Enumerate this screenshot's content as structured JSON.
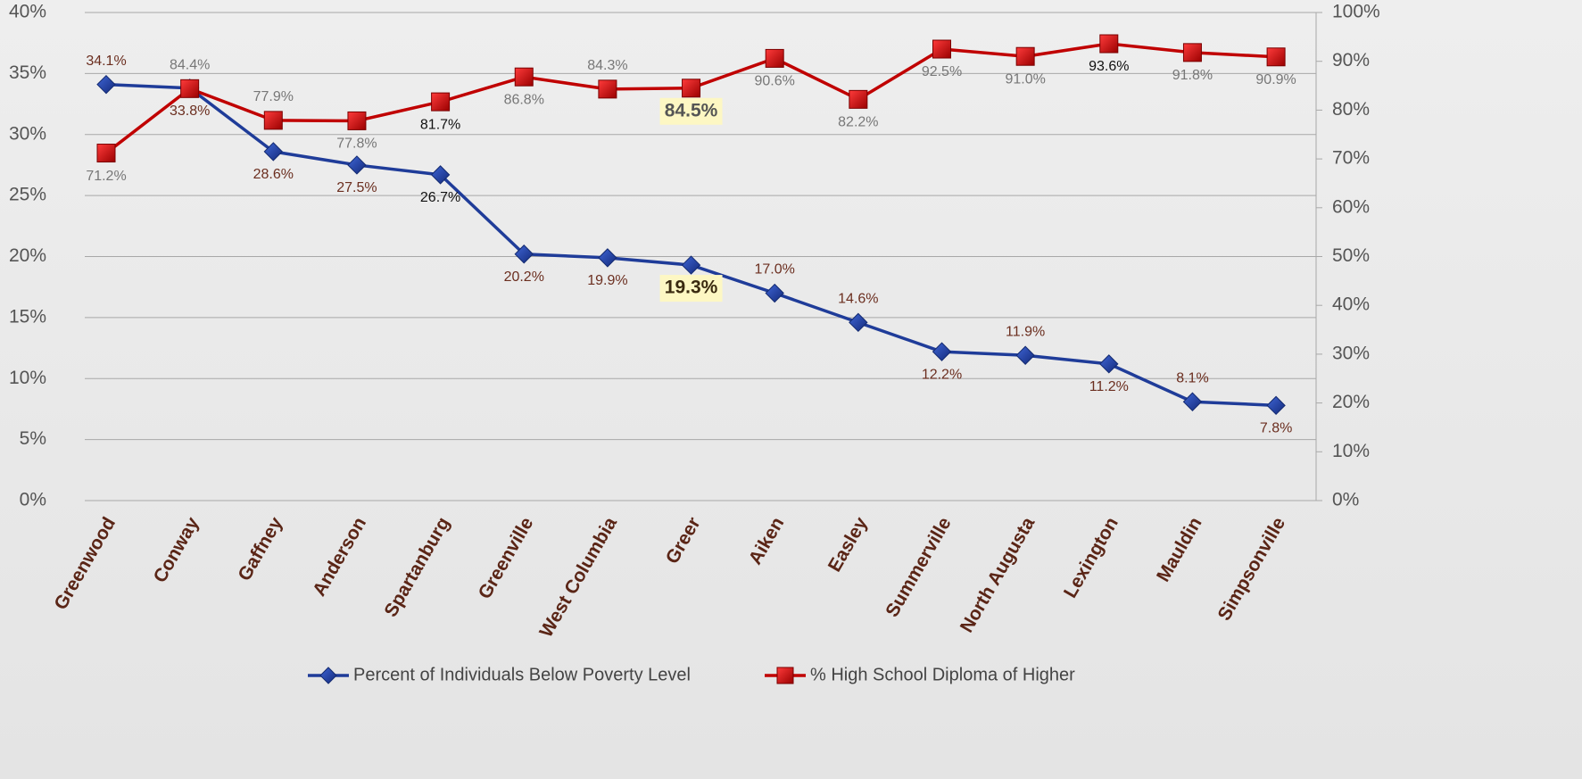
{
  "chart_data": {
    "type": "line",
    "categories": [
      "Greenwood",
      "Conway",
      "Gaffney",
      "Anderson",
      "Spartanburg",
      "Greenville",
      "West Columbia",
      "Greer",
      "Aiken",
      "Easley",
      "Summerville",
      "North Augusta",
      "Lexington",
      "Mauldin",
      "Simpsonville"
    ],
    "series": [
      {
        "name": "Percent of Individuals Below Poverty Level",
        "color": "#1f3c99",
        "axis": "y",
        "values": [
          34.1,
          33.8,
          28.6,
          27.5,
          26.7,
          20.2,
          19.9,
          19.3,
          17.0,
          14.6,
          12.2,
          11.9,
          11.2,
          8.1,
          7.8
        ],
        "value_labels": [
          "34.1%",
          "33.8%",
          "28.6%",
          "27.5%",
          "26.7%",
          "20.2%",
          "19.9%",
          "19.3%",
          "17.0%",
          "14.6%",
          "12.2%",
          "11.9%",
          "11.2%",
          "8.1%",
          "7.8%"
        ]
      },
      {
        "name": "% High School Diploma of Higher",
        "color": "#c00000",
        "axis": "y2",
        "values": [
          71.2,
          84.4,
          77.9,
          77.8,
          81.7,
          86.8,
          84.3,
          84.5,
          90.6,
          82.2,
          92.5,
          91.0,
          93.6,
          91.8,
          90.9
        ],
        "value_labels": [
          "71.2%",
          "84.4%",
          "77.9%",
          "77.8%",
          "81.7%",
          "86.8%",
          "84.3%",
          "84.5%",
          "90.6%",
          "82.2%",
          "92.5%",
          "91.0%",
          "93.6%",
          "91.8%",
          "90.9%"
        ]
      }
    ],
    "ylim": [
      0,
      40
    ],
    "yticks": [
      {
        "value": 0,
        "label": "0%"
      },
      {
        "value": 5,
        "label": "5%"
      },
      {
        "value": 10,
        "label": "10%"
      },
      {
        "value": 15,
        "label": "15%"
      },
      {
        "value": 20,
        "label": "20%"
      },
      {
        "value": 25,
        "label": "25%"
      },
      {
        "value": 30,
        "label": "30%"
      },
      {
        "value": 35,
        "label": "35%"
      },
      {
        "value": 40,
        "label": "40%"
      }
    ],
    "y2lim": [
      0,
      100
    ],
    "y2ticks": [
      {
        "value": 0,
        "label": "0%"
      },
      {
        "value": 10,
        "label": "10%"
      },
      {
        "value": 20,
        "label": "20%"
      },
      {
        "value": 30,
        "label": "30%"
      },
      {
        "value": 40,
        "label": "40%"
      },
      {
        "value": 50,
        "label": "50%"
      },
      {
        "value": 60,
        "label": "60%"
      },
      {
        "value": 70,
        "label": "70%"
      },
      {
        "value": 80,
        "label": "80%"
      },
      {
        "value": 90,
        "label": "90%"
      },
      {
        "value": 100,
        "label": "100%"
      }
    ],
    "grid": true,
    "legend": "bottom"
  }
}
